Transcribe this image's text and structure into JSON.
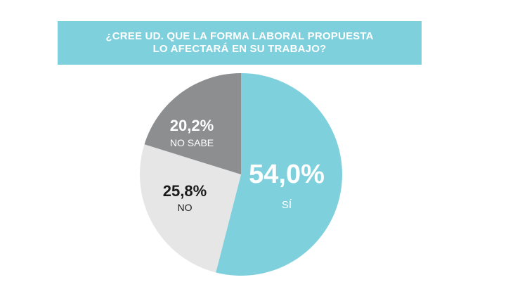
{
  "title_lines": [
    "¿CREE UD. QUE LA FORMA LABORAL PROPUESTA",
    "LO AFECTARÁ EN SU TRABAJO?"
  ],
  "colors": {
    "banner": "#7dd0dc",
    "si": "#7dd0dc",
    "no": "#e6e6e7",
    "no_sabe": "#8d8e90"
  },
  "chart_data": {
    "type": "pie",
    "title": "¿CREE UD. QUE LA FORMA LABORAL PROPUESTA LO AFECTARÁ EN SU TRABAJO?",
    "slices": [
      {
        "label": "SÍ",
        "value": 54.0,
        "value_label": "54,0%",
        "color": "#7dd0dc",
        "text_color": "#ffffff"
      },
      {
        "label": "NO",
        "value": 25.8,
        "value_label": "25,8%",
        "color": "#e6e6e7",
        "text_color": "#1a1a1a"
      },
      {
        "label": "NO SABE",
        "value": 20.2,
        "value_label": "20,2%",
        "color": "#8d8e90",
        "text_color": "#ffffff"
      }
    ],
    "start": "12 o'clock",
    "direction": "clockwise"
  }
}
